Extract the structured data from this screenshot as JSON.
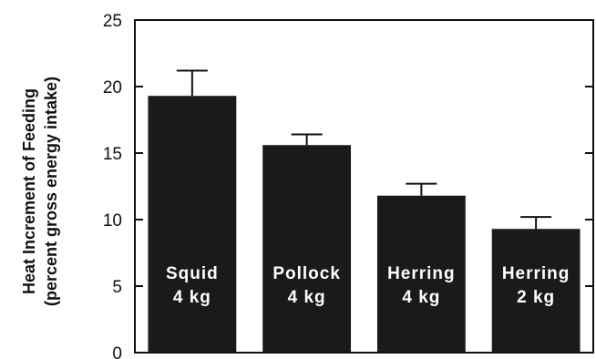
{
  "chart_data": {
    "type": "bar",
    "title": "",
    "ylabel": [
      "Heat Increment of Feeding",
      "(percent gross energy intake)"
    ],
    "xlabel": "",
    "ylim": [
      0,
      25
    ],
    "yticks": [
      0,
      5,
      10,
      15,
      20,
      25
    ],
    "grid": false,
    "categories": [
      [
        "Squid",
        "4 kg"
      ],
      [
        "Pollock",
        "4 kg"
      ],
      [
        "Herring",
        "4 kg"
      ],
      [
        "Herring",
        "2 kg"
      ]
    ],
    "series": [
      {
        "values": [
          19.3,
          15.6,
          11.8,
          9.3
        ],
        "error_upper": [
          1.9,
          0.8,
          0.9,
          0.9
        ]
      }
    ],
    "colors": {
      "bar": "#1a1a1a",
      "bar_text": "#ffffff",
      "axis": "#111111"
    }
  }
}
